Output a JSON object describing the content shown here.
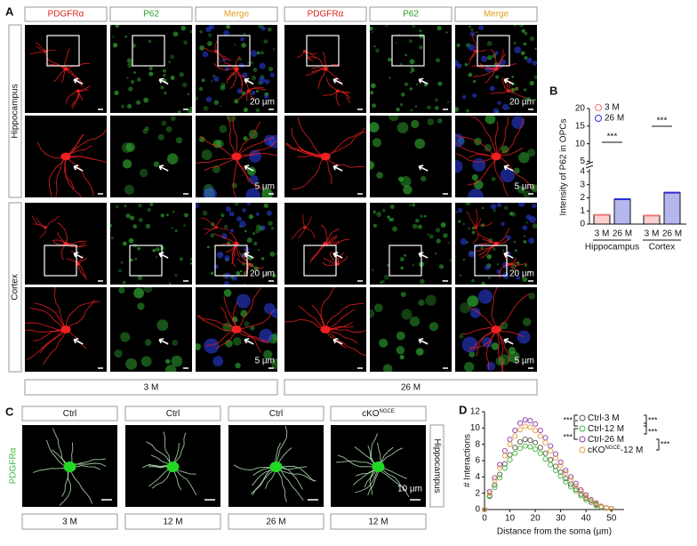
{
  "panels": {
    "a": {
      "label": "A",
      "column_headers": [
        "PDGFRα",
        "P62",
        "Merge",
        "PDGFRα",
        "P62",
        "Merge"
      ],
      "row_labels": [
        "Hippocampus",
        "Cortex"
      ],
      "group_labels": [
        "3 M",
        "26 M"
      ],
      "scale_labels": [
        "20 µm",
        "20 µm",
        "5 µm",
        "5 µm",
        "20 µm",
        "20 µm",
        "5 µm",
        "5 µm"
      ]
    },
    "c": {
      "label": "C",
      "headers": [
        {
          "text": "Ctrl"
        },
        {
          "text": "Ctrl"
        },
        {
          "text": "Ctrl"
        },
        {
          "text": "cKO",
          "sup": "NGCE"
        }
      ],
      "bottom_labels": [
        "3 M",
        "12 M",
        "26 M",
        "12 M"
      ],
      "stain_label": "PDGFRα",
      "region_label": "Hippocampus",
      "scale_label": "10 µm"
    }
  },
  "chart_data": [
    {
      "type": "bar",
      "panel_label": "B",
      "ylabel": "Intensity of P62 in OPCs",
      "categories": [
        "3 M",
        "26 M",
        "3 M",
        "26 M"
      ],
      "groups": [
        "Hippocampus",
        "Cortex"
      ],
      "values": [
        0.7,
        1.9,
        0.65,
        2.4
      ],
      "colors": [
        "#f07878",
        "#2d2dd2",
        "#f07878",
        "#2d2dd2"
      ],
      "legend": [
        {
          "name": "3 M",
          "color": "#f07878"
        },
        {
          "name": "26 M",
          "color": "#2d2dd2"
        }
      ],
      "y_segments": [
        {
          "ylim": [
            0,
            4.2
          ],
          "yticks": [
            0,
            1,
            2,
            3,
            4
          ]
        },
        {
          "ylim": [
            4.6,
            20
          ],
          "yticks": [
            5,
            10,
            15,
            20
          ]
        }
      ],
      "significance": [
        "***",
        "***"
      ]
    },
    {
      "type": "line",
      "panel_label": "D",
      "xlabel": "Distance from the soma (µm)",
      "ylabel": "# Interactions",
      "x": [
        0,
        2,
        4,
        6,
        8,
        10,
        12,
        14,
        16,
        18,
        20,
        22,
        24,
        26,
        28,
        30,
        32,
        34,
        36,
        38,
        40,
        42,
        44,
        46,
        48,
        50
      ],
      "xlim": [
        0,
        55
      ],
      "xticks": [
        0,
        10,
        20,
        30,
        40,
        50
      ],
      "ylim": [
        0,
        12
      ],
      "yticks": [
        0,
        2,
        4,
        6,
        8,
        10,
        12
      ],
      "series": [
        {
          "name": "Ctrl-3 M",
          "color": "#5a5a4a",
          "values": [
            0,
            1.7,
            3.0,
            4.3,
            5.6,
            6.7,
            7.6,
            8.3,
            8.6,
            8.5,
            8.2,
            7.6,
            6.9,
            6.1,
            5.3,
            4.6,
            3.8,
            3.1,
            2.5,
            1.9,
            1.4,
            0.9,
            0.6,
            0.3,
            0.2,
            0.1
          ]
        },
        {
          "name": "Ctrl-12 M",
          "color": "#3cb83c",
          "values": [
            0,
            1.6,
            2.7,
            3.9,
            5.1,
            6.1,
            6.9,
            7.5,
            7.8,
            7.7,
            7.4,
            6.9,
            6.2,
            5.5,
            4.8,
            4.1,
            3.4,
            2.8,
            2.3,
            1.7,
            1.2,
            0.9,
            0.5,
            0.3,
            0.2,
            0.1
          ]
        },
        {
          "name": "Ctrl-26 M",
          "color": "#8a3aa8",
          "values": [
            0,
            2.2,
            3.9,
            5.5,
            7.2,
            8.6,
            9.7,
            10.6,
            11.0,
            10.9,
            10.5,
            9.7,
            8.8,
            7.8,
            6.8,
            5.8,
            4.8,
            4.0,
            3.2,
            2.4,
            1.8,
            1.2,
            0.8,
            0.4,
            0.2,
            0.1
          ]
        },
        {
          "name": "cKO",
          "name_sup": "NGCE",
          "name_suffix": "-12 M",
          "color": "#e89a3a",
          "values": [
            0,
            2.0,
            3.6,
            5.1,
            6.6,
            8.0,
            9.0,
            9.8,
            10.2,
            10.1,
            9.7,
            9.0,
            8.2,
            7.2,
            6.3,
            5.4,
            4.5,
            3.7,
            2.9,
            2.2,
            1.6,
            1.1,
            0.7,
            0.4,
            0.2,
            0.1
          ]
        }
      ],
      "significance": [
        "***",
        "***",
        "***",
        "***",
        "***"
      ]
    }
  ]
}
